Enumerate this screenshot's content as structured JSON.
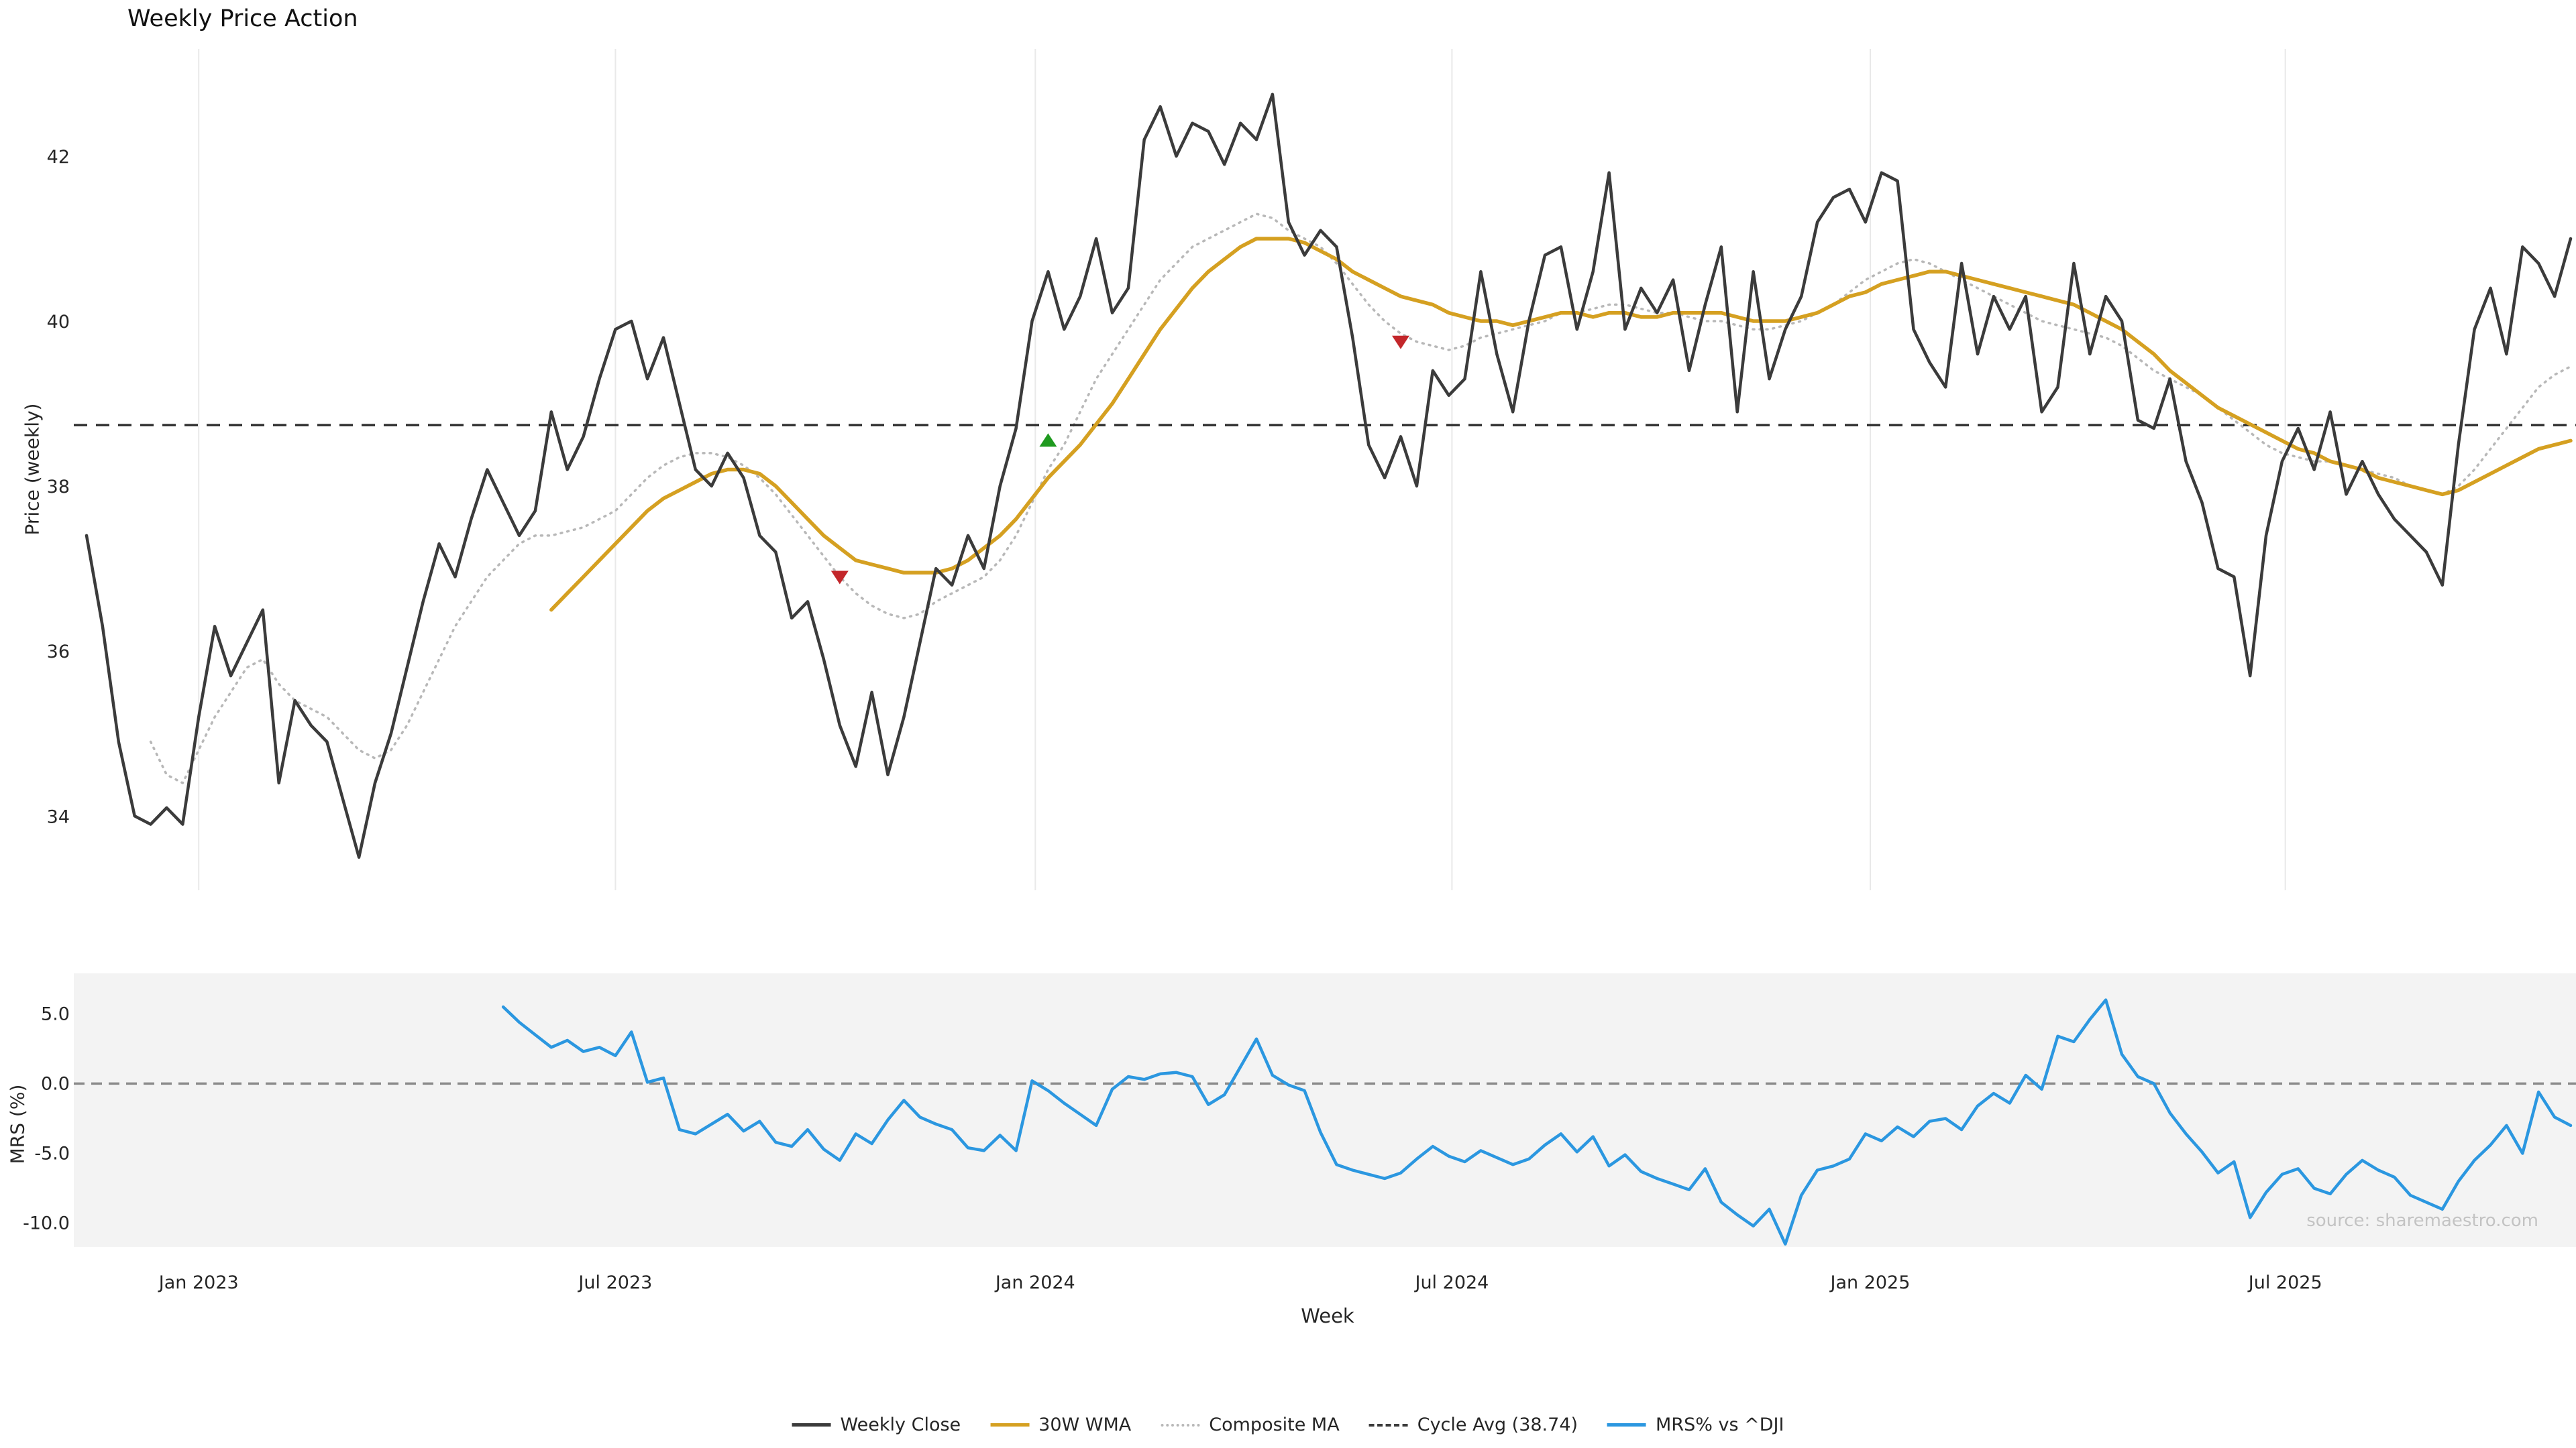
{
  "source_text": "source: sharemaestro.com",
  "legend": {
    "items": [
      {
        "label": "Weekly Close",
        "color": "#3b3b3b",
        "style": "solid"
      },
      {
        "label": "30W WMA",
        "color": "#d5a021",
        "style": "solid"
      },
      {
        "label": "Composite MA",
        "color": "#b8b8b8",
        "style": "dotted"
      },
      {
        "label": "Cycle Avg (38.74)",
        "color": "#3b3b3b",
        "style": "dashed"
      },
      {
        "label": "MRS% vs ^DJI",
        "color": "#2b97e0",
        "style": "solid"
      }
    ]
  },
  "chart_data": [
    {
      "type": "line",
      "panel": "price",
      "title": "Weekly Price Action",
      "ylabel": "Price (weekly)",
      "ylim": [
        33.1,
        43.3
      ],
      "grid": "vertical",
      "yticks": [
        {
          "value": 34,
          "label": "34"
        },
        {
          "value": 36,
          "label": "36"
        },
        {
          "value": 38,
          "label": "38"
        },
        {
          "value": 40,
          "label": "40"
        },
        {
          "value": 42,
          "label": "42"
        }
      ],
      "xticks": [
        {
          "label": "Jan 2023",
          "week": 7
        },
        {
          "label": "Jul 2023",
          "week": 33
        },
        {
          "label": "Jan 2024",
          "week": 59.2
        },
        {
          "label": "Jul 2024",
          "week": 85.2
        },
        {
          "label": "Jan 2025",
          "week": 111.3
        },
        {
          "label": "Jul 2025",
          "week": 137.2
        }
      ],
      "series": [
        {
          "name": "Composite MA",
          "kind": "line",
          "color": "#b8b8b8",
          "width": 3.5,
          "dash": "2 8",
          "start_week": 4,
          "values": [
            34.9,
            34.5,
            34.4,
            34.8,
            35.2,
            35.5,
            35.8,
            35.9,
            35.6,
            35.4,
            35.3,
            35.2,
            35.0,
            34.8,
            34.7,
            34.8,
            35.1,
            35.5,
            35.9,
            36.3,
            36.6,
            36.9,
            37.1,
            37.3,
            37.4,
            37.4,
            37.45,
            37.5,
            37.6,
            37.7,
            37.9,
            38.1,
            38.25,
            38.35,
            38.4,
            38.4,
            38.35,
            38.25,
            38.1,
            37.9,
            37.65,
            37.4,
            37.15,
            36.9,
            36.7,
            36.55,
            36.45,
            36.4,
            36.45,
            36.6,
            36.7,
            36.8,
            36.9,
            37.1,
            37.4,
            37.8,
            38.2,
            38.5,
            38.9,
            39.3,
            39.6,
            39.9,
            40.2,
            40.5,
            40.7,
            40.9,
            41.0,
            41.1,
            41.2,
            41.3,
            41.25,
            41.1,
            41.0,
            40.9,
            40.7,
            40.45,
            40.2,
            40.0,
            39.85,
            39.75,
            39.7,
            39.65,
            39.7,
            39.8,
            39.85,
            39.9,
            39.95,
            40.0,
            40.1,
            40.1,
            40.15,
            40.2,
            40.2,
            40.15,
            40.1,
            40.1,
            40.05,
            40.0,
            40.0,
            39.95,
            39.9,
            39.9,
            39.95,
            40.0,
            40.1,
            40.2,
            40.35,
            40.5,
            40.6,
            40.7,
            40.75,
            40.7,
            40.6,
            40.5,
            40.4,
            40.3,
            40.2,
            40.1,
            40.0,
            39.95,
            39.9,
            39.85,
            39.8,
            39.7,
            39.55,
            39.4,
            39.3,
            39.2,
            39.1,
            38.95,
            38.8,
            38.65,
            38.5,
            38.4,
            38.35,
            38.3,
            38.3,
            38.25,
            38.2,
            38.15,
            38.1,
            38.0,
            37.95,
            37.9,
            38.0,
            38.2,
            38.45,
            38.7,
            38.95,
            39.2,
            39.35,
            39.45
          ]
        },
        {
          "name": "Cycle Avg",
          "kind": "hline",
          "color": "#2f2f2f",
          "width": 3.5,
          "dash": "20 13",
          "value": 38.74
        },
        {
          "name": "30W WMA",
          "kind": "line",
          "color": "#d5a021",
          "width": 5.5,
          "dash": "",
          "start_week": 29,
          "values": [
            36.5,
            36.7,
            36.9,
            37.1,
            37.3,
            37.5,
            37.7,
            37.85,
            37.95,
            38.05,
            38.15,
            38.2,
            38.2,
            38.15,
            38.0,
            37.8,
            37.6,
            37.4,
            37.25,
            37.1,
            37.05,
            37.0,
            36.95,
            36.95,
            36.95,
            37.0,
            37.1,
            37.25,
            37.4,
            37.6,
            37.85,
            38.1,
            38.3,
            38.5,
            38.75,
            39.0,
            39.3,
            39.6,
            39.9,
            40.15,
            40.4,
            40.6,
            40.75,
            40.9,
            41.0,
            41.0,
            41.0,
            40.95,
            40.85,
            40.75,
            40.6,
            40.5,
            40.4,
            40.3,
            40.25,
            40.2,
            40.1,
            40.05,
            40.0,
            40.0,
            39.95,
            40.0,
            40.05,
            40.1,
            40.1,
            40.05,
            40.1,
            40.1,
            40.05,
            40.05,
            40.1,
            40.1,
            40.1,
            40.1,
            40.05,
            40.0,
            40.0,
            40.0,
            40.05,
            40.1,
            40.2,
            40.3,
            40.35,
            40.45,
            40.5,
            40.55,
            40.6,
            40.6,
            40.55,
            40.5,
            40.45,
            40.4,
            40.35,
            40.3,
            40.25,
            40.2,
            40.1,
            40.0,
            39.9,
            39.75,
            39.6,
            39.4,
            39.25,
            39.1,
            38.95,
            38.85,
            38.75,
            38.65,
            38.55,
            38.45,
            38.4,
            38.3,
            38.25,
            38.2,
            38.1,
            38.05,
            38.0,
            37.95,
            37.9,
            37.95,
            38.05,
            38.15,
            38.25,
            38.35,
            38.45,
            38.5,
            38.55
          ]
        },
        {
          "name": "Weekly Close",
          "kind": "line",
          "color": "#3b3b3b",
          "width": 4.5,
          "dash": "",
          "start_week": 0,
          "values": [
            37.4,
            36.3,
            34.9,
            34.0,
            33.9,
            34.1,
            33.9,
            35.2,
            36.3,
            35.7,
            36.1,
            36.5,
            34.4,
            35.4,
            35.1,
            34.9,
            34.2,
            33.5,
            34.4,
            35.0,
            35.8,
            36.6,
            37.3,
            36.9,
            37.6,
            38.2,
            37.8,
            37.4,
            37.7,
            38.9,
            38.2,
            38.6,
            39.3,
            39.9,
            40.0,
            39.3,
            39.8,
            39.0,
            38.2,
            38.0,
            38.4,
            38.1,
            37.4,
            37.2,
            36.4,
            36.6,
            35.9,
            35.1,
            34.6,
            35.5,
            34.5,
            35.2,
            36.1,
            37.0,
            36.8,
            37.4,
            37.0,
            38.0,
            38.7,
            40.0,
            40.6,
            39.9,
            40.3,
            41.0,
            40.1,
            40.4,
            42.2,
            42.6,
            42.0,
            42.4,
            42.3,
            41.9,
            42.4,
            42.2,
            42.75,
            41.2,
            40.8,
            41.1,
            40.9,
            39.8,
            38.5,
            38.1,
            38.6,
            38.0,
            39.4,
            39.1,
            39.3,
            40.6,
            39.6,
            38.9,
            40.0,
            40.8,
            40.9,
            39.9,
            40.6,
            41.8,
            39.9,
            40.4,
            40.1,
            40.5,
            39.4,
            40.2,
            40.9,
            38.9,
            40.6,
            39.3,
            39.9,
            40.3,
            41.2,
            41.5,
            41.6,
            41.2,
            41.8,
            41.7,
            39.9,
            39.5,
            39.2,
            40.7,
            39.6,
            40.3,
            39.9,
            40.3,
            38.9,
            39.2,
            40.7,
            39.6,
            40.3,
            40.0,
            38.8,
            38.7,
            39.3,
            38.3,
            37.8,
            37.0,
            36.9,
            35.7,
            37.4,
            38.3,
            38.7,
            38.2,
            38.9,
            37.9,
            38.3,
            37.9,
            37.6,
            37.4,
            37.2,
            36.8,
            38.5,
            39.9,
            40.4,
            39.6,
            40.9,
            40.7,
            40.3,
            41.0
          ]
        }
      ],
      "markers": [
        {
          "name": "sell-marker",
          "shape": "triangle-down",
          "color": "#c3272b",
          "week": 47,
          "value": 36.9
        },
        {
          "name": "buy-marker",
          "shape": "triangle-up",
          "color": "#1f9a1f",
          "week": 60,
          "value": 38.55
        },
        {
          "name": "sell-marker",
          "shape": "triangle-down",
          "color": "#c3272b",
          "week": 82,
          "value": 39.75
        }
      ]
    },
    {
      "type": "line",
      "panel": "mrs",
      "ylabel": "MRS (%)",
      "xlabel": "Week",
      "ylim": [
        -11.7,
        7.9
      ],
      "panel_bg": "#f3f3f3",
      "yticks": [
        {
          "value": 5,
          "label": "5.0"
        },
        {
          "value": 0,
          "label": "0.0"
        },
        {
          "value": -5,
          "label": "-5.0"
        },
        {
          "value": -10,
          "label": "-10.0"
        }
      ],
      "series": [
        {
          "name": "Zero Line",
          "kind": "hline",
          "color": "#8a8a8a",
          "width": 3.5,
          "dash": "16 10",
          "value": 0
        },
        {
          "name": "MRS% vs ^DJI",
          "kind": "line",
          "color": "#2b97e0",
          "width": 4.5,
          "dash": "",
          "start_week": 26,
          "values": [
            5.5,
            4.4,
            3.5,
            2.6,
            3.1,
            2.3,
            2.6,
            2.0,
            3.7,
            0.1,
            0.4,
            -3.3,
            -3.6,
            -2.9,
            -2.2,
            -3.4,
            -2.7,
            -4.2,
            -4.5,
            -3.3,
            -4.7,
            -5.5,
            -3.6,
            -4.3,
            -2.6,
            -1.2,
            -2.4,
            -2.9,
            -3.3,
            -4.6,
            -4.8,
            -3.7,
            -4.8,
            0.2,
            -0.5,
            -1.4,
            -2.2,
            -3.0,
            -0.4,
            0.5,
            0.3,
            0.7,
            0.8,
            0.5,
            -1.5,
            -0.8,
            1.2,
            3.2,
            0.6,
            -0.1,
            -0.5,
            -3.5,
            -5.8,
            -6.2,
            -6.5,
            -6.8,
            -6.4,
            -5.4,
            -4.5,
            -5.2,
            -5.6,
            -4.8,
            -5.3,
            -5.8,
            -5.4,
            -4.4,
            -3.6,
            -4.9,
            -3.8,
            -5.9,
            -5.1,
            -6.3,
            -6.8,
            -7.2,
            -7.6,
            -6.1,
            -8.5,
            -9.4,
            -10.2,
            -9.0,
            -11.5,
            -8.0,
            -6.2,
            -5.9,
            -5.4,
            -3.6,
            -4.1,
            -3.1,
            -3.8,
            -2.7,
            -2.5,
            -3.3,
            -1.6,
            -0.7,
            -1.4,
            0.6,
            -0.4,
            3.4,
            3.0,
            4.6,
            6.0,
            2.1,
            0.5,
            0.0,
            -2.1,
            -3.6,
            -4.9,
            -6.4,
            -5.6,
            -9.6,
            -7.8,
            -6.5,
            -6.1,
            -7.5,
            -7.9,
            -6.5,
            -5.5,
            -6.2,
            -6.7,
            -8.0,
            -8.5,
            -9.0,
            -7.0,
            -5.5,
            -4.4,
            -3.0,
            -5.0,
            -0.6,
            -2.4,
            -3.0
          ]
        }
      ]
    }
  ]
}
